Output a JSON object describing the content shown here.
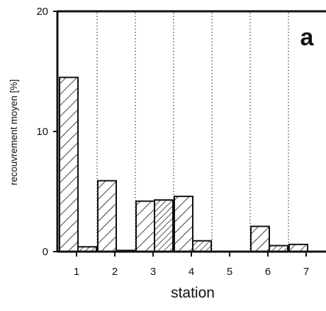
{
  "chart_data": {
    "type": "bar",
    "panel_label": "a",
    "xlabel": "station",
    "ylabel": "recouvrement moyen [%]",
    "ylim": [
      0,
      20
    ],
    "yticks": [
      "0",
      "10",
      "20"
    ],
    "categories": [
      "1",
      "2",
      "3",
      "4",
      "5",
      "6",
      "7"
    ],
    "series": [
      {
        "pattern": "wide-hatch",
        "values": [
          14.5,
          5.9,
          4.2,
          4.6,
          0,
          2.1,
          0.6
        ]
      },
      {
        "pattern": "dense-hatch",
        "values": [
          0.4,
          0.1,
          4.3,
          0.9,
          0,
          0.5,
          null
        ]
      }
    ],
    "grid": "vertical dotted separators between stations",
    "legend": "none",
    "colors": {
      "ink": "#111111",
      "background": "#ffffff"
    }
  }
}
